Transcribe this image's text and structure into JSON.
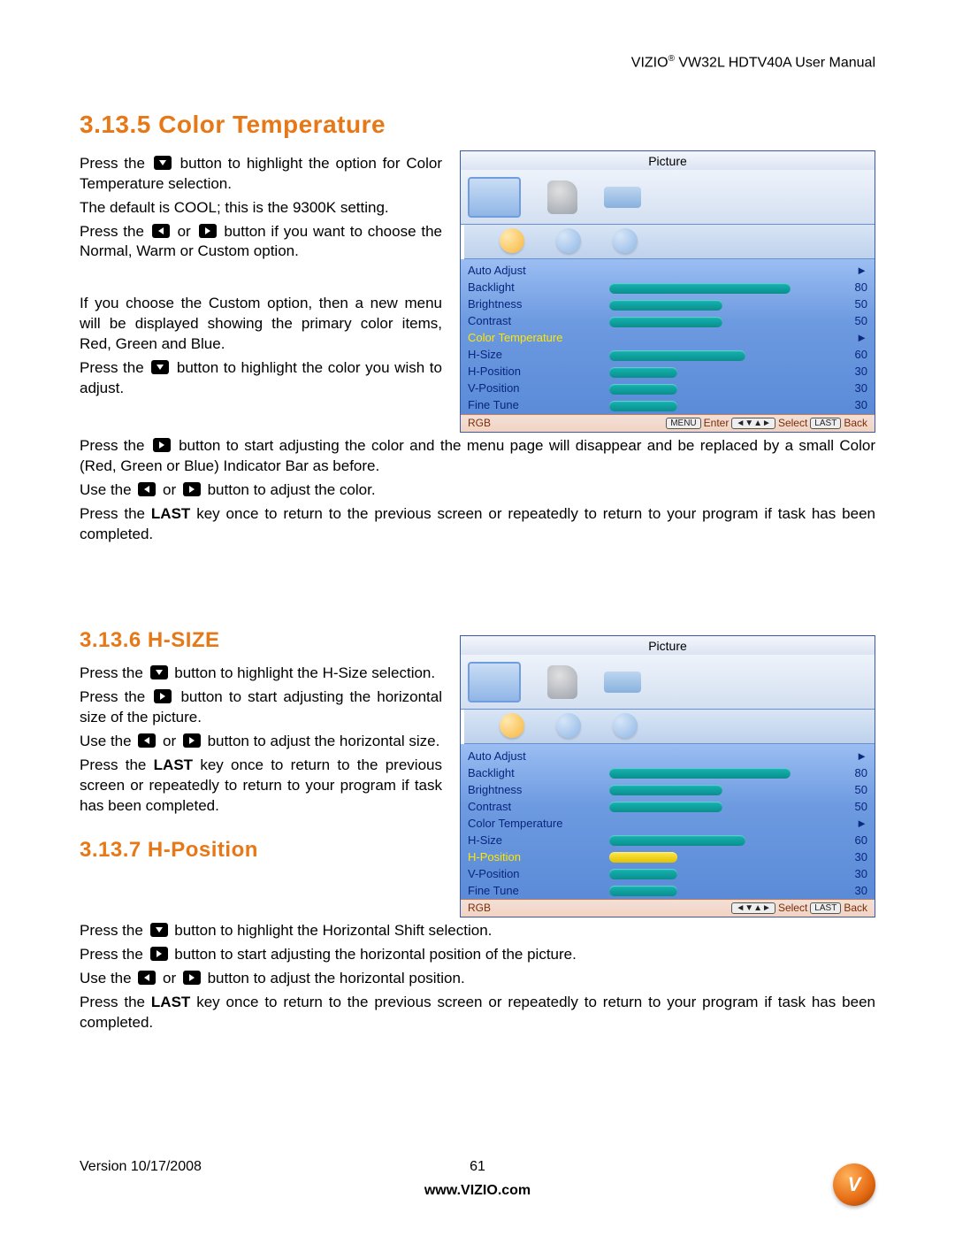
{
  "header": {
    "brand": "VIZIO",
    "reg": "®",
    "model_line": "   VW32L HDTV40A User Manual"
  },
  "section1": {
    "heading": "3.13.5 Color Temperature",
    "p1a": "Press the ",
    "p1b": " button to highlight the option for Color Temperature selection.",
    "p2": "The default is COOL; this is the 9300K setting.",
    "p3a": "Press the ",
    "p3b": " or ",
    "p3c": " button if you want to choose the Normal, Warm or Custom option.",
    "p4": "If you choose the Custom option, then a new menu will be displayed showing the primary color items, Red, Green and Blue.",
    "p5a": "Press the ",
    "p5b": " button to highlight the color you wish to adjust.",
    "p6a": "Press the ",
    "p6b": " button to start adjusting the color and the menu page will disappear and be replaced by a small Color (Red, Green or Blue) Indicator Bar as before.",
    "p7a": "Use the ",
    "p7b": " or ",
    "p7c": " button to adjust the color.",
    "p8a": "Press the ",
    "p8b": "LAST",
    "p8c": " key once to return to the previous screen or repeatedly to return to your program if task has been completed."
  },
  "section2": {
    "heading": "3.13.6 H-SIZE",
    "p1a": "Press the ",
    "p1b": " button to highlight the H-Size selection.",
    "p2a": "Press the ",
    "p2b": " button to start adjusting the horizontal size of the picture.",
    "p3a": "Use the ",
    "p3b": " or ",
    "p3c": " button to adjust the horizontal size.",
    "p4a": "Press the ",
    "p4b": "LAST",
    "p4c": " key once to return to the previous screen or repeatedly to return to your program if task has been completed."
  },
  "section3": {
    "heading": "3.13.7 H-Position",
    "p1a": "Press the ",
    "p1b": " button to highlight the Horizontal Shift selection.",
    "p2a": "Press the ",
    "p2b": " button to start adjusting the horizontal position of the picture.",
    "p3a": "Use the ",
    "p3b": " or ",
    "p3c": " button to adjust the horizontal position.",
    "p4a": "Press the ",
    "p4b": "LAST",
    "p4c": " key once to return to the previous screen or repeatedly to return to your program if task has been completed."
  },
  "osd1": {
    "title": "Picture",
    "highlight_idx": 4,
    "items": [
      {
        "label": "Auto Adjust",
        "type": "arrow"
      },
      {
        "label": "Backlight",
        "type": "bar",
        "value": 80,
        "max": 100
      },
      {
        "label": "Brightness",
        "type": "bar",
        "value": 50,
        "max": 100
      },
      {
        "label": "Contrast",
        "type": "bar",
        "value": 50,
        "max": 100
      },
      {
        "label": "Color Temperature",
        "type": "arrow"
      },
      {
        "label": "H-Size",
        "type": "bar",
        "value": 60,
        "max": 100
      },
      {
        "label": "H-Position",
        "type": "bar",
        "value": 30,
        "max": 100
      },
      {
        "label": "V-Position",
        "type": "bar",
        "value": 30,
        "max": 100
      },
      {
        "label": "Fine Tune",
        "type": "bar",
        "value": 30,
        "max": 100
      }
    ],
    "footer_left": "RGB",
    "footer_keys": [
      {
        "box": "MENU",
        "text": "Enter"
      },
      {
        "box": "◄▼▲►",
        "text": "Select"
      },
      {
        "box": "LAST",
        "text": "Back"
      }
    ],
    "colors": {
      "bar": "#14b2b0",
      "bar_hl": "#ffe84a",
      "label": "#08267d",
      "label_hl": "#ffe600"
    }
  },
  "osd2": {
    "title": "Picture",
    "highlight_idx": 6,
    "items": [
      {
        "label": "Auto Adjust",
        "type": "arrow"
      },
      {
        "label": "Backlight",
        "type": "bar",
        "value": 80,
        "max": 100
      },
      {
        "label": "Brightness",
        "type": "bar",
        "value": 50,
        "max": 100
      },
      {
        "label": "Contrast",
        "type": "bar",
        "value": 50,
        "max": 100
      },
      {
        "label": "Color Temperature",
        "type": "arrow"
      },
      {
        "label": "H-Size",
        "type": "bar",
        "value": 60,
        "max": 100
      },
      {
        "label": "H-Position",
        "type": "bar",
        "value": 30,
        "max": 100
      },
      {
        "label": "V-Position",
        "type": "bar",
        "value": 30,
        "max": 100
      },
      {
        "label": "Fine Tune",
        "type": "bar",
        "value": 30,
        "max": 100
      }
    ],
    "footer_left": "RGB",
    "footer_keys": [
      {
        "box": "◄▼▲►",
        "text": "Select"
      },
      {
        "box": "LAST",
        "text": "Back"
      }
    ]
  },
  "footer": {
    "version": "Version 10/17/2008",
    "page": "61",
    "url": "www.VIZIO.com",
    "logo_letter": "V"
  }
}
